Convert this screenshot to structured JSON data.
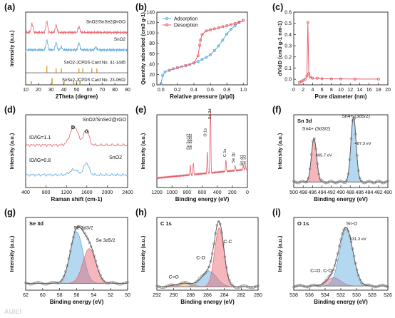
{
  "panels": {
    "a": {
      "letter": "(a)",
      "xlabel": "2Theta (degree)",
      "ylabel": "Intensity (a.u.)",
      "xticks": [
        "10",
        "20",
        "30",
        "40",
        "50",
        "60",
        "70",
        "80",
        "90"
      ],
      "labels": [
        "SnO2/SnSe2@rGO",
        "SnO2",
        "SnO2-JCPDS Card No. 41-1445",
        "SnSe2-JCPDS Card No. 23-0602"
      ]
    },
    "b": {
      "letter": "(b)",
      "xlabel": "Relative pressure (p/p0)",
      "ylabel": "Quantity adsorbed (cm3 g-1)",
      "xticks": [
        "0.0",
        "0.2",
        "0.4",
        "0.6",
        "0.8",
        "1.0"
      ],
      "yticks": [
        "0",
        "20",
        "40",
        "60",
        "80",
        "100",
        "120",
        "140"
      ],
      "legend": [
        "Adsorption",
        "Desorption"
      ]
    },
    "c": {
      "letter": "(c)",
      "xlabel": "Pore diameter (nm)",
      "ylabel": "dV/dD (cm3 g-1 nm-1)",
      "xticks": [
        "0",
        "2",
        "4",
        "6",
        "8",
        "10",
        "12",
        "14",
        "16",
        "18",
        "20"
      ],
      "yticks": [
        "0.0",
        "0.1",
        "0.2",
        "0.3",
        "0.4",
        "0.5",
        "0.6"
      ]
    },
    "d": {
      "letter": "(d)",
      "xlabel": "Raman shift (cm-1)",
      "ylabel": "Intensity (a.u.)",
      "xticks": [
        "400",
        "800",
        "1200",
        "1600",
        "2000",
        "2400"
      ],
      "labels": [
        "SnO2/SnSe2@rGO",
        "SnO2",
        "D",
        "G",
        "ID/IG=1.1",
        "ID/IG=0.8"
      ]
    },
    "e": {
      "letter": "(e)",
      "xlabel": "Binding energy (eV)",
      "ylabel": "Intensity (a.u.)",
      "xticks": [
        "1200",
        "1000",
        "800",
        "600",
        "400",
        "200",
        "0"
      ],
      "labels": [
        "Sn 3p1/2",
        "Sn 3p3/2",
        "O 1s",
        "Sn 3d",
        "C 1s",
        "Se 3p",
        "Sn 4d",
        "Se 3d"
      ]
    },
    "f": {
      "letter": "(f)",
      "title": "Sn 3d",
      "xlabel": "Binding energy (eV)",
      "ylabel": "Intensity (a.u.)",
      "xticks": [
        "500",
        "498",
        "496",
        "494",
        "492",
        "490",
        "488",
        "486",
        "484",
        "482",
        "480"
      ],
      "labels": [
        "Sn4+ (3d3/2)",
        "Sn4+ (3d5/2)",
        "495.7 eV",
        "487.3 eV"
      ]
    },
    "g": {
      "letter": "(g)",
      "title": "Se 3d",
      "xlabel": "Binding energy (eV)",
      "ylabel": "Intensity (a.u.)",
      "xticks": [
        "62",
        "60",
        "58",
        "56",
        "54",
        "52",
        "50"
      ],
      "labels": [
        "Se 3d3/2",
        "Se 3d5/2"
      ]
    },
    "h": {
      "letter": "(h)",
      "title": "C 1s",
      "xlabel": "Binding energy (eV)",
      "ylabel": "Intensity (a.u.)",
      "xticks": [
        "292",
        "290",
        "288",
        "286",
        "284",
        "282",
        "280"
      ],
      "labels": [
        "C-C",
        "C-O",
        "C=O"
      ]
    },
    "i": {
      "letter": "(i)",
      "title": "O 1s",
      "xlabel": "Binding energy (eV)",
      "ylabel": "Intensity (a.u.)",
      "xticks": [
        "538",
        "536",
        "534",
        "532",
        "530",
        "528",
        "526"
      ],
      "labels": [
        "Sn-O",
        "531.3 eV",
        "C=O, C-O"
      ]
    }
  },
  "watermark": "AUIEI",
  "colors": {
    "red": "#e8606a",
    "blue": "#5aa9df",
    "orange": "#e39a2f",
    "olive": "#b09a2a",
    "gray": "#8a8a8a",
    "purple": "#8b4aa6"
  },
  "chart_data": [
    {
      "type": "line",
      "panel": "a",
      "xlabel": "2Theta (degree)",
      "ylabel": "Intensity (a.u.)",
      "xlim": [
        10,
        90
      ],
      "series": [
        {
          "name": "SnO2/SnSe2@rGO",
          "x": [
            10,
            14,
            15,
            20,
            26.6,
            30,
            33.9,
            38,
            45,
            51.8,
            60,
            65,
            70,
            80,
            90
          ],
          "y": [
            3.6,
            3.7,
            4.2,
            3.6,
            4.4,
            3.6,
            4.1,
            3.7,
            3.6,
            4.0,
            3.7,
            3.7,
            3.6,
            3.5,
            3.5
          ]
        },
        {
          "name": "SnO2",
          "x": [
            10,
            20,
            26.6,
            30,
            33.9,
            38,
            45,
            51.8,
            55,
            62,
            65,
            70,
            80,
            90
          ],
          "y": [
            2.4,
            2.4,
            3.1,
            2.4,
            2.9,
            2.6,
            2.4,
            2.9,
            2.4,
            2.5,
            2.6,
            2.5,
            2.4,
            2.4
          ]
        }
      ],
      "reference_lines": {
        "SnO2-JCPDS Card No. 41-1445": [
          26.6,
          33.9,
          38.0,
          51.8,
          54.8,
          61.9,
          65.9
        ],
        "SnSe2-JCPDS Card No. 23-0602": [
          14.4,
          30.7,
          40.1,
          47.7,
          50.0,
          52.6
        ]
      }
    },
    {
      "type": "line",
      "panel": "b",
      "xlabel": "Relative pressure (p/p0)",
      "ylabel": "Quantity adsorbed (cm3 g-1)",
      "xlim": [
        -0.05,
        1.05
      ],
      "ylim": [
        0,
        140
      ],
      "series": [
        {
          "name": "Adsorption",
          "x": [
            0.0,
            0.02,
            0.05,
            0.1,
            0.15,
            0.2,
            0.25,
            0.3,
            0.35,
            0.4,
            0.45,
            0.5,
            0.55,
            0.6,
            0.65,
            0.7,
            0.75,
            0.8,
            0.85,
            0.9,
            0.95,
            1.0
          ],
          "y": [
            2,
            18,
            25,
            28,
            31,
            33,
            35,
            37,
            39,
            42,
            45,
            49,
            53,
            58,
            66,
            75,
            86,
            98,
            107,
            114,
            120,
            124
          ]
        },
        {
          "name": "Desorption",
          "x": [
            1.0,
            0.95,
            0.9,
            0.85,
            0.8,
            0.75,
            0.7,
            0.65,
            0.6,
            0.55,
            0.5,
            0.48,
            0.47,
            0.45,
            0.4,
            0.3,
            0.2,
            0.1
          ],
          "y": [
            124,
            121,
            118,
            116,
            114,
            112,
            110,
            108,
            106,
            104,
            97,
            86,
            76,
            56,
            42,
            37,
            33,
            28
          ]
        }
      ]
    },
    {
      "type": "line",
      "panel": "c",
      "xlabel": "Pore diameter (nm)",
      "ylabel": "dV/dD (cm3 g-1 nm-1)",
      "xlim": [
        0,
        20
      ],
      "ylim": [
        -0.05,
        0.6
      ],
      "series": [
        {
          "x": [
            1.2,
            1.6,
            2.0,
            2.4,
            2.8,
            3.0,
            3.2,
            3.5,
            4.0,
            5.0,
            6.0,
            8.0,
            10.0,
            13.0,
            18.0
          ],
          "y": [
            -0.03,
            -0.02,
            -0.01,
            0.0,
            0.03,
            0.51,
            0.05,
            0.02,
            0.01,
            0.01,
            0.005,
            0.003,
            0.003,
            0.002,
            0.002
          ]
        }
      ]
    },
    {
      "type": "line",
      "panel": "d",
      "xlabel": "Raman shift (cm-1)",
      "ylabel": "Intensity (a.u.)",
      "xlim": [
        400,
        2400
      ],
      "series": [
        {
          "name": "SnO2/SnSe2@rGO",
          "x": [
            400,
            800,
            1000,
            1200,
            1350,
            1450,
            1590,
            1700,
            1900,
            2100,
            2400
          ],
          "y": [
            1.7,
            1.8,
            1.9,
            2.1,
            2.6,
            2.2,
            2.5,
            2.0,
            1.85,
            1.8,
            1.75
          ]
        },
        {
          "name": "SnO2",
          "x": [
            400,
            800,
            1000,
            1200,
            1350,
            1450,
            1590,
            1700,
            1900,
            2100,
            2400
          ],
          "y": [
            0.5,
            0.55,
            0.6,
            0.7,
            0.85,
            0.75,
            1.1,
            0.65,
            0.55,
            0.5,
            0.5
          ]
        }
      ]
    },
    {
      "type": "line",
      "panel": "e",
      "xlabel": "Binding energy (eV)",
      "ylabel": "Intensity (a.u.)",
      "xlim": [
        1200,
        0
      ],
      "peaks": {
        "Sn 3p1/2": 757,
        "Sn 3p3/2": 716,
        "O 1s": 531,
        "Sn 3d": 487,
        "C 1s": 285,
        "Se 3p": 162,
        "Sn 4d": 26,
        "Se 3d": 55
      }
    },
    {
      "type": "line",
      "panel": "f",
      "xlabel": "Binding energy (eV)",
      "ylabel": "Intensity (a.u.)",
      "xlim": [
        500,
        480
      ],
      "peaks": [
        {
          "name": "Sn4+ (3d3/2)",
          "center": 495.7,
          "height": 0.63
        },
        {
          "name": "Sn4+ (3d5/2)",
          "center": 487.3,
          "height": 0.95
        }
      ]
    },
    {
      "type": "line",
      "panel": "g",
      "xlabel": "Binding energy (eV)",
      "ylabel": "Intensity (a.u.)",
      "xlim": [
        62,
        50
      ],
      "peaks": [
        {
          "name": "Se 3d3/2",
          "center": 56.0,
          "height": 0.74
        },
        {
          "name": "Se 3d5/2",
          "center": 54.5,
          "height": 0.5
        }
      ]
    },
    {
      "type": "line",
      "panel": "h",
      "xlabel": "Binding energy (eV)",
      "ylabel": "Intensity (a.u.)",
      "xlim": [
        292,
        280
      ],
      "peaks": [
        {
          "name": "C-C",
          "center": 284.6,
          "height": 0.85
        },
        {
          "name": "C-O",
          "center": 285.8,
          "height": 0.22
        },
        {
          "name": "C=O",
          "center": 288.8,
          "height": 0.05
        }
      ]
    },
    {
      "type": "line",
      "panel": "i",
      "xlabel": "Binding energy (eV)",
      "ylabel": "Intensity (a.u.)",
      "xlim": [
        538,
        526
      ],
      "peaks": [
        {
          "name": "Sn-O",
          "center": 531.3,
          "height": 0.82
        },
        {
          "name": "C=O, C-O",
          "center": 532.9,
          "height": 0.12
        }
      ]
    }
  ]
}
